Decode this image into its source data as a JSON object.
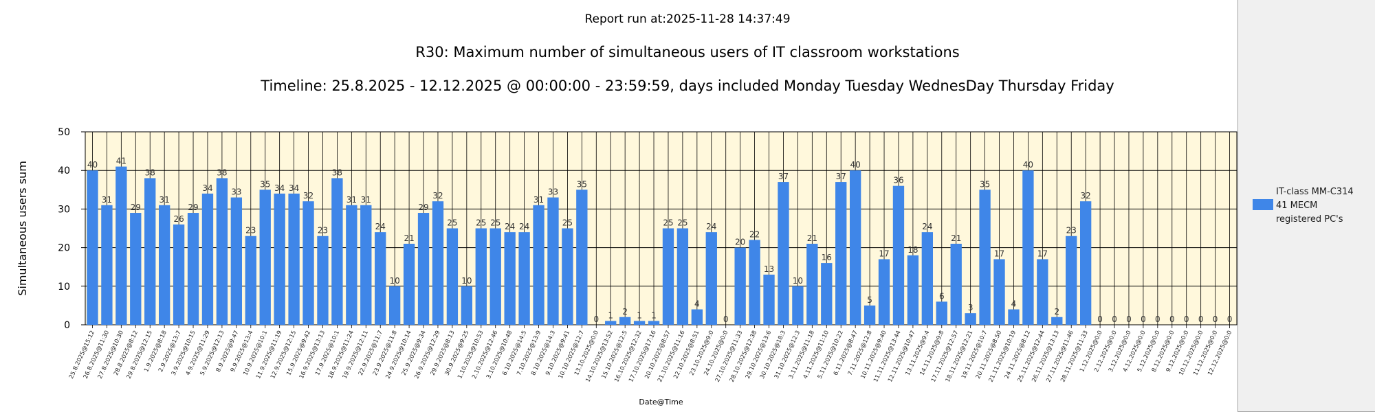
{
  "report_run": "Report run at:2025-11-28 14:37:49",
  "legend": {
    "lines": [
      "IT-class MM-C314",
      "41 MECM",
      "registered PC's"
    ],
    "color": "#3f86e8"
  },
  "chart_data": {
    "type": "bar",
    "title": "R30: Maximum number of simultaneous users of IT classroom workstations",
    "subtitle": "Timeline: 25.8.2025  - 12.12.2025  @  00:00:00 -  23:59:59, days included Monday Tuesday WednesDay Thursday Friday",
    "xlabel": "Date@Time",
    "ylabel": "Simultaneous users sum",
    "ylim": [
      0,
      50
    ],
    "yticks": [
      0,
      10,
      20,
      30,
      40,
      50
    ],
    "grid": true,
    "plot_background": "#fff8dc",
    "bar_color": "#3f86e8",
    "legend_position": "right",
    "categories": [
      "25.8.2025@15:12",
      "26.8.2025@11:30",
      "27.8.2025@10:30",
      "28.8.2025@8:12",
      "29.8.2025@12:15",
      "1.9.2025@8:18",
      "2.9.2025@13:7",
      "3.9.2025@10:15",
      "4.9.2025@11:29",
      "5.9.2025@12:13",
      "8.9.2025@9:47",
      "9.9.2025@13:4",
      "10.9.2025@10:1",
      "11.9.2025@11:19",
      "12.9.2025@12:15",
      "15.9.2025@9:42",
      "16.9.2025@13:13",
      "17.9.2025@10:1",
      "18.9.2025@11:24",
      "19.9.2025@12:11",
      "22.9.2025@11:7",
      "23.9.2025@11:8",
      "24.9.2025@10:14",
      "25.9.2025@9:34",
      "26.9.2025@12:29",
      "29.9.2025@8:13",
      "30.9.2025@9:25",
      "1.10.2025@10:53",
      "2.10.2025@12:46",
      "3.10.2025@10:48",
      "6.10.2025@14:5",
      "7.10.2025@13:9",
      "8.10.2025@14:3",
      "9.10.2025@9:41",
      "10.10.2025@12:7",
      "13.10.2025@0:0",
      "14.10.2025@13:52",
      "15.10.2025@12:5",
      "16.10.2025@12:32",
      "17.10.2025@17:16",
      "20.10.2025@8:57",
      "21.10.2025@11:16",
      "22.10.2025@8:51",
      "23.10.2025@9:0",
      "24.10.2025@0:0",
      "27.10.2025@11:33",
      "28.10.2025@12:38",
      "29.10.2025@13:6",
      "30.10.2025@18:3",
      "31.10.2025@12:3",
      "3.11.2025@11:18",
      "4.11.2025@11:10",
      "5.11.2025@10:22",
      "6.11.2025@8:47",
      "7.11.2025@12:8",
      "10.11.2025@9:40",
      "11.11.2025@13:44",
      "12.11.2025@10:47",
      "13.11.2025@9:4",
      "14.11.2025@9:8",
      "17.11.2025@12:57",
      "18.11.2025@12:21",
      "19.11.2025@10:7",
      "20.11.2025@8:50",
      "21.11.2025@10:19",
      "24.11.2025@8:12",
      "25.11.2025@12:44",
      "26.11.2025@13:13",
      "27.11.2025@11:46",
      "28.11.2025@11:33",
      "1.12.2025@0:0",
      "2.12.2025@0:0",
      "3.12.2025@0:0",
      "4.12.2025@0:0",
      "5.12.2025@0:0",
      "8.12.2025@0:0",
      "9.12.2025@0:0",
      "10.12.2025@0:0",
      "11.12.2025@0:0",
      "12.12.2025@0:0"
    ],
    "series": [
      {
        "name": "IT-class MM-C314 41 MECM registered PC's",
        "values": [
          40,
          31,
          41,
          29,
          38,
          31,
          26,
          29,
          34,
          38,
          33,
          23,
          35,
          34,
          34,
          32,
          23,
          38,
          31,
          31,
          24,
          10,
          21,
          29,
          32,
          25,
          10,
          25,
          25,
          24,
          24,
          31,
          33,
          25,
          35,
          0,
          1,
          2,
          1,
          1,
          25,
          25,
          4,
          24,
          0,
          20,
          22,
          13,
          37,
          10,
          21,
          16,
          37,
          40,
          5,
          17,
          36,
          18,
          24,
          6,
          21,
          3,
          35,
          17,
          4,
          40,
          17,
          2,
          23,
          32,
          0,
          0,
          0,
          0,
          0,
          0,
          0,
          0,
          0,
          0
        ]
      }
    ]
  }
}
